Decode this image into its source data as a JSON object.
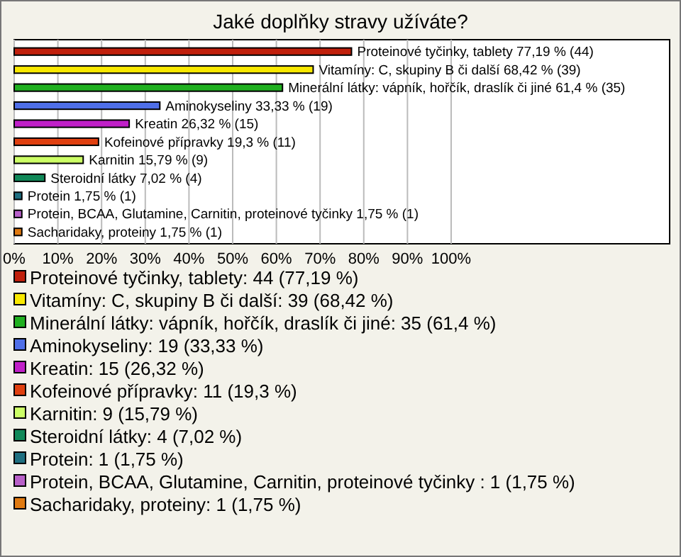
{
  "chart_data": {
    "type": "bar",
    "orientation": "horizontal",
    "title": "Jaké doplňky stravy užíváte?",
    "categories": [
      "Proteinové tyčinky, tablety",
      "Vitamíny: C, skupiny B či další",
      "Minerální látky: vápník, hořčík, draslík či jiné",
      "Aminokyseliny",
      "Kreatin",
      "Kofeinové přípravky",
      "Karnitin",
      "Steroidní látky",
      "Protein",
      "Protein, BCAA, Glutamine, Carnitin, proteinové tyčinky ",
      "Sacharidaky, proteiny"
    ],
    "values": [
      77.19,
      68.42,
      61.4,
      33.33,
      26.32,
      19.3,
      15.79,
      7.02,
      1.75,
      1.75,
      1.75
    ],
    "colors": [
      "#c0200c",
      "#f8e800",
      "#20b020",
      "#4f6fe8",
      "#c020c8",
      "#e04010",
      "#ccff66",
      "#108858",
      "#1f6f80",
      "#b860c8",
      "#e07a10"
    ],
    "value_labels": [
      "77,19 % (44)",
      "68,42 % (39)",
      "61,4 % (35)",
      "33,33 % (19)",
      "26,32 % (15)",
      "19,3 % (11)",
      "15,79 % (9)",
      "7,02 % (4)",
      "1,75 % (1)",
      "1,75 % (1)",
      "1,75 % (1)"
    ],
    "xlim": [
      0,
      150
    ],
    "xticks": [
      {
        "value": 0,
        "label": "0%"
      },
      {
        "value": 10,
        "label": "10%"
      },
      {
        "value": 20,
        "label": "20%"
      },
      {
        "value": 30,
        "label": "30%"
      },
      {
        "value": 40,
        "label": "40%"
      },
      {
        "value": 50,
        "label": "50%"
      },
      {
        "value": 60,
        "label": "60%"
      },
      {
        "value": 70,
        "label": "70%"
      },
      {
        "value": 80,
        "label": "80%"
      },
      {
        "value": 90,
        "label": "90%"
      },
      {
        "value": 100,
        "label": "100%"
      }
    ],
    "grid": "x",
    "annotations": [
      "Proteinové tyčinky, tablety: 44 (77,19 %)",
      "Vitamíny: C, skupiny B či další: 39 (68,42 %)",
      "Minerální látky: vápník, hořčík, draslík či jiné: 35 (61,4 %)",
      "Aminokyseliny: 19 (33,33 %)",
      "Kreatin: 15 (26,32 %)",
      "Kofeinové přípravky: 11 (19,3 %)",
      "Karnitin: 9 (15,79 %)",
      "Steroidní látky: 4 (7,02 %)",
      "Protein: 1 (1,75 %)",
      "Protein, BCAA, Glutamine, Carnitin, proteinové tyčinky : 1 (1,75 %)",
      "Sacharidaky, proteiny: 1 (1,75 %)"
    ]
  }
}
